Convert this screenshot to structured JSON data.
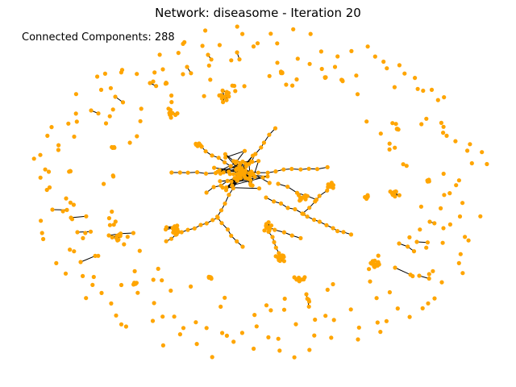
{
  "figure": {
    "title": "Network: diseasome - Iteration 20",
    "annotation": "Connected Components: 288"
  },
  "graph": {
    "node_color": "#FFA500",
    "edge_color": "#000000"
  }
}
